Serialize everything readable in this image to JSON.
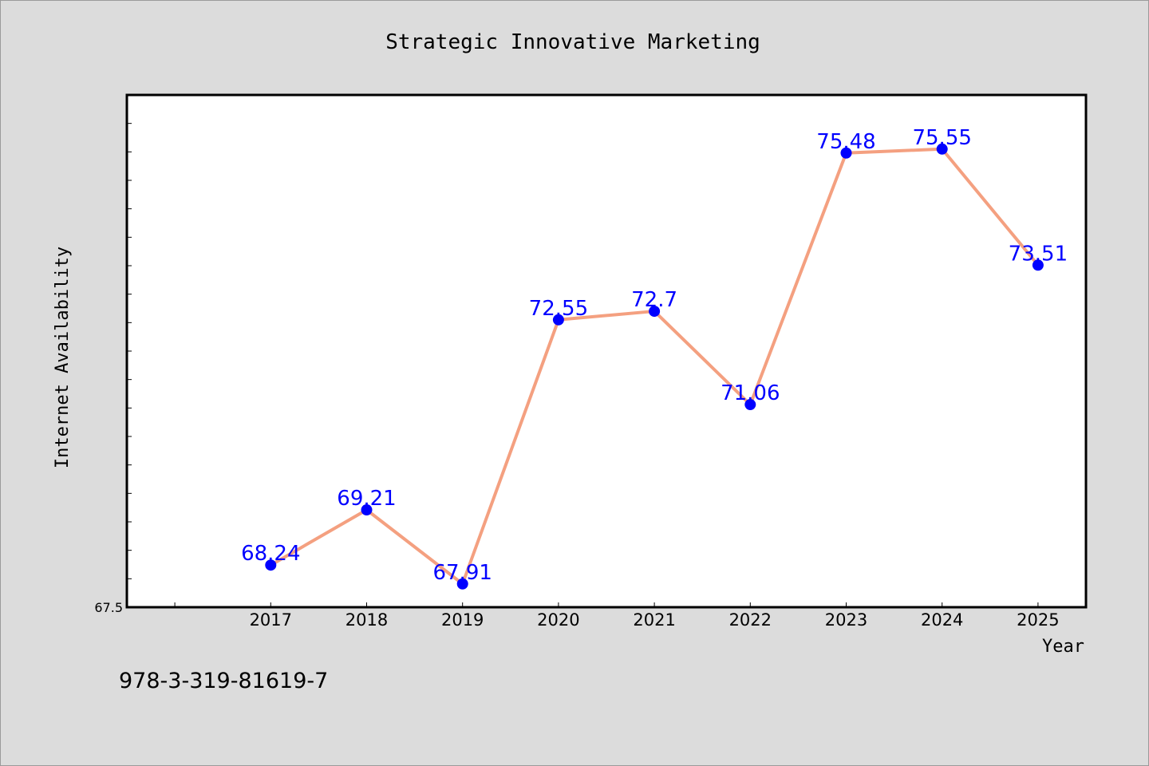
{
  "footer_text": "978-3-319-81619-7",
  "colors": {
    "background": "#dcdcdc",
    "plot_background": "#ffffff",
    "line": "#f4a080",
    "marker": "#0000ff",
    "data_label": "#0000ff"
  },
  "chart_data": {
    "type": "line",
    "title": "Strategic Innovative Marketing",
    "xlabel": "Year",
    "ylabel": "Internet Availability",
    "x": [
      "2017",
      "2018",
      "2019",
      "2020",
      "2021",
      "2022",
      "2023",
      "2024",
      "2025"
    ],
    "values": [
      68.24,
      69.21,
      67.91,
      72.55,
      72.7,
      71.06,
      75.48,
      75.55,
      73.51
    ],
    "data_labels": [
      "68.24",
      "69.21",
      "67.91",
      "72.55",
      "72.7",
      "71.06",
      "75.48",
      "75.55",
      "73.51"
    ],
    "ylim": [
      67.5,
      76.5
    ],
    "xlim": [
      2015.5,
      2025.5
    ],
    "y_tick_labels": [
      "67.5"
    ],
    "y_minor_tick_step": 0.5,
    "grid": false,
    "legend": "none"
  }
}
